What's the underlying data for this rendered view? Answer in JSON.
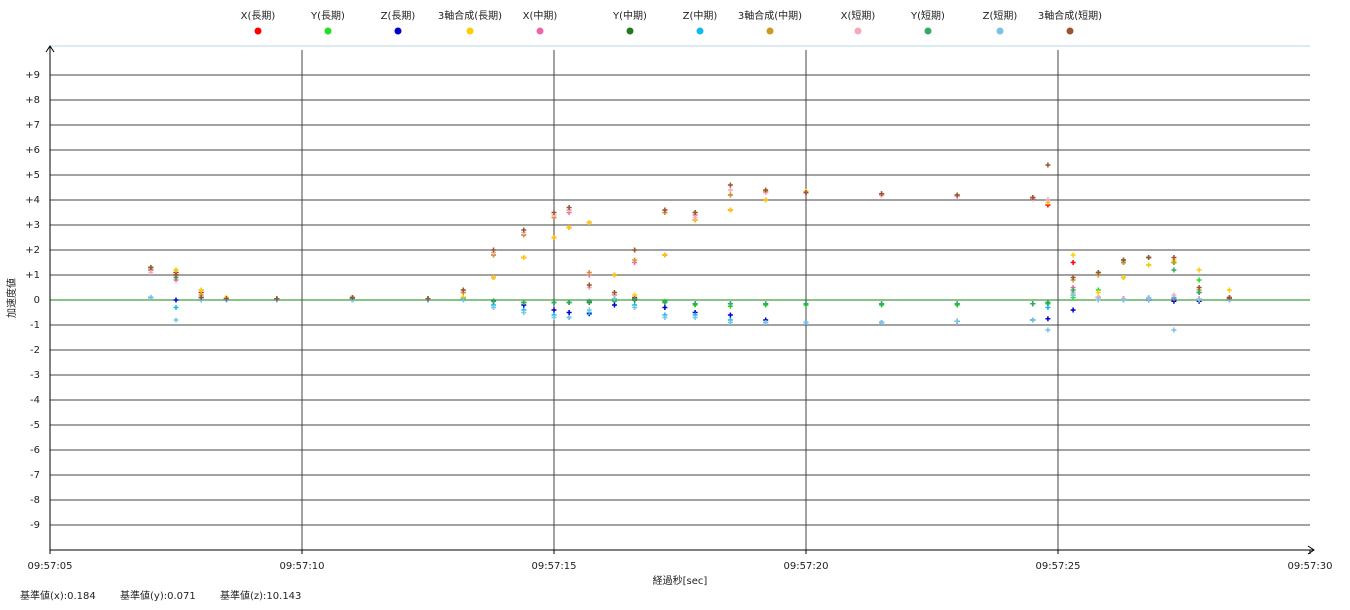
{
  "chart_data": {
    "type": "scatter",
    "x_label": "経過秒[sec]",
    "y_label": "加速度値",
    "xlim": [
      5,
      30
    ],
    "ylim": [
      -10,
      10
    ],
    "xticks": [
      {
        "value": 5,
        "label": "09:57:05"
      },
      {
        "value": 10,
        "label": "09:57:10"
      },
      {
        "value": 15,
        "label": "09:57:15"
      },
      {
        "value": 20,
        "label": "09:57:20"
      },
      {
        "value": 25,
        "label": "09:57:25"
      },
      {
        "value": 30,
        "label": "09:57:30"
      }
    ],
    "yticks": [
      {
        "value": 9,
        "label": "+9"
      },
      {
        "value": 8,
        "label": "+8"
      },
      {
        "value": 7,
        "label": "+7"
      },
      {
        "value": 6,
        "label": "+6"
      },
      {
        "value": 5,
        "label": "+5"
      },
      {
        "value": 4,
        "label": "+4"
      },
      {
        "value": 3,
        "label": "+3"
      },
      {
        "value": 2,
        "label": "+2"
      },
      {
        "value": 1,
        "label": "+1"
      },
      0,
      -1,
      -2,
      -3,
      -4,
      -5,
      -6,
      -7,
      -8,
      -9
    ],
    "grid": true,
    "x": [
      7.0,
      7.5,
      8.0,
      8.5,
      9.5,
      11,
      12.5,
      13.2,
      13.8,
      14.4,
      15.0,
      15.3,
      15.7,
      16.2,
      16.6,
      17.2,
      17.8,
      18.5,
      19.2,
      20.0,
      21.5,
      23.0,
      24.5,
      24.8,
      25.3,
      25.8,
      26.3,
      26.8,
      27.3,
      27.8,
      28.4
    ],
    "series": [
      {
        "name": "X(長期)",
        "color": "#ff0000",
        "values": [
          1.2,
          1.1,
          0.3,
          0.05,
          0.05,
          0.1,
          0.05,
          0.1,
          0.9,
          1.7,
          2.5,
          2.9,
          3.1,
          1.0,
          0.1,
          1.8,
          3.2,
          3.6,
          4.0,
          4.3,
          4.2,
          4.15,
          4.05,
          3.8,
          1.5,
          0.1,
          0.05,
          0.05,
          0.05,
          0.05,
          0.05
        ]
      },
      {
        "name": "Y(長期)",
        "color": "#22dd22",
        "values": [
          1.3,
          1.2,
          0.4,
          0.05,
          0.05,
          0.05,
          0.05,
          0.05,
          -0.05,
          -0.1,
          -0.1,
          -0.1,
          -0.1,
          -0.05,
          0,
          -0.05,
          -0.2,
          -0.25,
          -0.2,
          -0.2,
          -0.2,
          -0.2,
          -0.15,
          -0.15,
          0.1,
          0.4,
          0.9,
          1.4,
          1.5,
          0.8,
          0.1
        ]
      },
      {
        "name": "Z(長期)",
        "color": "#0000cc",
        "values": [
          0.1,
          0,
          0,
          0,
          0,
          0,
          0,
          0,
          -0.05,
          -0.2,
          -0.4,
          -0.5,
          -0.55,
          -0.2,
          0.05,
          -0.3,
          -0.5,
          -0.6,
          -0.8,
          -0.9,
          -0.9,
          -0.85,
          -0.8,
          -0.75,
          -0.4,
          0.1,
          0.05,
          0,
          -0.05,
          -0.05,
          0
        ]
      },
      {
        "name": "3軸合成(長期)",
        "color": "#ffcc00",
        "values": [
          1.2,
          1.2,
          0.4,
          0.1,
          0.05,
          0.1,
          0.05,
          0.1,
          0.9,
          1.7,
          2.5,
          2.9,
          3.1,
          1.0,
          0.2,
          1.8,
          3.2,
          3.6,
          4.0,
          4.35,
          4.25,
          4.2,
          4.1,
          3.9,
          1.8,
          0.3,
          0.9,
          1.4,
          1.6,
          1.2,
          0.4
        ]
      },
      {
        "name": "X(中期)",
        "color": "#ee66aa",
        "values": [
          1.2,
          0.8,
          0.1,
          0.05,
          0.05,
          0.1,
          0.05,
          0.3,
          1.8,
          2.6,
          3.3,
          3.5,
          1.0,
          0.2,
          1.5,
          3.5,
          3.4,
          4.2,
          4.3,
          4.3,
          4.2,
          4.15,
          4.05,
          4.0,
          0.5,
          0.1,
          0.05,
          0.05,
          0.05,
          0.05,
          0.1
        ]
      },
      {
        "name": "Y(中期)",
        "color": "#227722",
        "values": [
          1.3,
          1.0,
          0.1,
          0.05,
          0.05,
          0.05,
          0.05,
          0,
          -0.05,
          -0.1,
          -0.1,
          -0.1,
          -0.1,
          0,
          0,
          -0.1,
          -0.15,
          -0.15,
          -0.15,
          -0.15,
          -0.15,
          -0.15,
          -0.15,
          -0.1,
          0.3,
          1.0,
          1.5,
          1.7,
          1.5,
          0.3,
          0
        ]
      },
      {
        "name": "Z(中期)",
        "color": "#11bbee",
        "values": [
          0.1,
          -0.3,
          0,
          0,
          0,
          0,
          0,
          0,
          -0.2,
          -0.4,
          -0.6,
          -0.7,
          -0.5,
          0,
          -0.2,
          -0.6,
          -0.6,
          -0.8,
          -0.9,
          -0.9,
          -0.9,
          -0.85,
          -0.8,
          -0.3,
          0.2,
          0.1,
          0,
          0,
          0.1,
          0,
          0
        ]
      },
      {
        "name": "3軸合成(中期)",
        "color": "#cc9922",
        "values": [
          1.3,
          0.9,
          0.2,
          0.05,
          0.05,
          0.1,
          0.05,
          0.3,
          1.8,
          2.6,
          3.3,
          3.6,
          1.1,
          0.2,
          1.6,
          3.5,
          3.5,
          4.2,
          4.35,
          4.3,
          4.25,
          4.2,
          4.1,
          4.0,
          0.8,
          1.0,
          1.5,
          1.7,
          1.5,
          0.4,
          0.1
        ]
      },
      {
        "name": "X(短期)",
        "color": "#f4aabb",
        "values": [
          1.1,
          0.9,
          0.1,
          0.05,
          0.05,
          0.1,
          0.05,
          0.4,
          1.9,
          2.7,
          3.4,
          3.6,
          0.5,
          0.2,
          2.0,
          3.6,
          3.3,
          4.4,
          4.3,
          4.3,
          4.2,
          4.15,
          4.05,
          4.0,
          0.3,
          0.1,
          0.05,
          0.05,
          0.2,
          0.05,
          0.1
        ]
      },
      {
        "name": "Y(短期)",
        "color": "#33aa66",
        "values": [
          1.3,
          0.9,
          0.1,
          0.05,
          0.05,
          0.05,
          0.05,
          0,
          -0.05,
          -0.1,
          -0.1,
          -0.1,
          -0.05,
          0,
          0.05,
          -0.1,
          -0.15,
          -0.15,
          -0.15,
          -0.15,
          -0.15,
          -0.15,
          -0.15,
          -0.1,
          0.4,
          1.1,
          1.6,
          1.7,
          1.2,
          0.3,
          0
        ]
      },
      {
        "name": "Z(短期)",
        "color": "#77c4e4",
        "values": [
          0.1,
          -0.8,
          0,
          0,
          0,
          0,
          0,
          0,
          -0.3,
          -0.5,
          -0.7,
          -0.7,
          -0.4,
          0.05,
          -0.3,
          -0.7,
          -0.7,
          -0.9,
          -0.9,
          -0.9,
          -0.9,
          -0.85,
          -0.8,
          -1.2,
          0.2,
          0,
          0,
          0.1,
          -1.2,
          0,
          0
        ]
      },
      {
        "name": "3軸合成(短期)",
        "color": "#995533",
        "values": [
          1.3,
          1.0,
          0.1,
          0.05,
          0.05,
          0.1,
          0.05,
          0.4,
          2.0,
          2.8,
          3.5,
          3.7,
          0.6,
          0.3,
          2.0,
          3.6,
          3.5,
          4.6,
          4.4,
          4.3,
          4.25,
          4.2,
          4.1,
          5.4,
          0.9,
          1.1,
          1.6,
          1.7,
          1.7,
          0.5,
          0.1
        ]
      }
    ]
  },
  "footer": [
    "基準値(x):0.184",
    "基準値(y):0.071",
    "基準値(z):10.143"
  ]
}
